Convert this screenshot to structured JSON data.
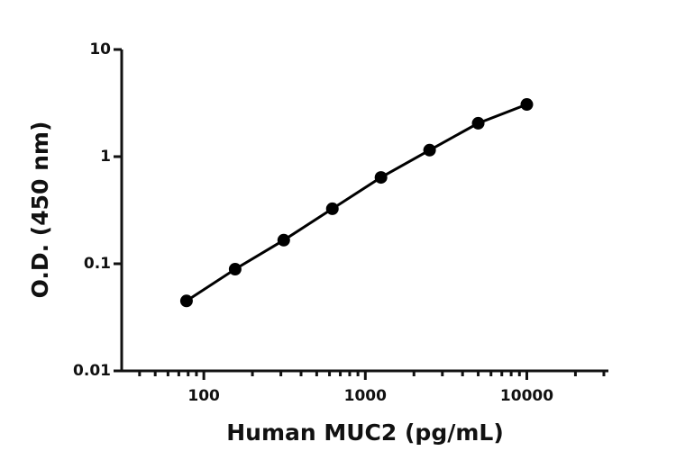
{
  "chart_data": {
    "type": "scatter",
    "x_label": "Human MUC2 (pg/mL)",
    "y_label": "O.D. (450 nm)",
    "x_log": true,
    "y_log": true,
    "xlim": [
      31,
      32000
    ],
    "ylim": [
      0.01,
      10
    ],
    "xticks": [
      100,
      1000,
      10000
    ],
    "xminorticks": [
      40,
      50,
      60,
      70,
      80,
      90,
      200,
      300,
      400,
      500,
      600,
      700,
      800,
      900,
      2000,
      3000,
      4000,
      5000,
      6000,
      7000,
      8000,
      9000,
      20000,
      30000
    ],
    "yticks": [
      0.01,
      0.1,
      1,
      10
    ],
    "connect": true,
    "series": [
      {
        "color": "#000000",
        "x": [
          78.125,
          156.25,
          312.5,
          625,
          1250,
          2500,
          5000,
          10000
        ],
        "values": [
          0.045,
          0.089,
          0.166,
          0.326,
          0.64,
          1.15,
          2.05,
          3.07
        ]
      }
    ]
  }
}
